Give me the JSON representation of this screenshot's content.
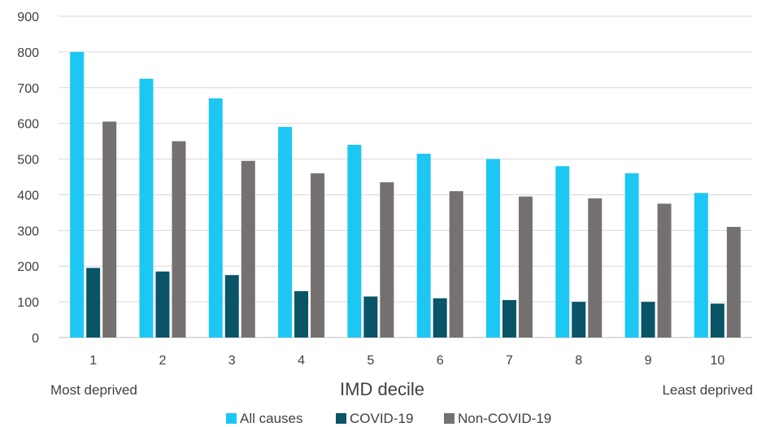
{
  "chart_data": {
    "type": "bar",
    "categories": [
      "1",
      "2",
      "3",
      "4",
      "5",
      "6",
      "7",
      "8",
      "9",
      "10"
    ],
    "series": [
      {
        "name": "All causes",
        "color": "#1cc7f4",
        "values": [
          800,
          725,
          670,
          590,
          540,
          515,
          500,
          480,
          460,
          405
        ]
      },
      {
        "name": "COVID-19",
        "color": "#0a5468",
        "values": [
          195,
          185,
          175,
          130,
          115,
          110,
          105,
          100,
          100,
          95
        ]
      },
      {
        "name": "Non-COVID-19",
        "color": "#767171",
        "values": [
          605,
          550,
          495,
          460,
          435,
          410,
          395,
          390,
          375,
          310
        ]
      }
    ],
    "xlabel": "IMD decile",
    "ylabel": "",
    "ylim": [
      0,
      900
    ],
    "yticks": [
      0,
      100,
      200,
      300,
      400,
      500,
      600,
      700,
      800,
      900
    ],
    "grid": true,
    "legend": "bottom",
    "annotations": {
      "left": "Most deprived",
      "right": "Least deprived"
    }
  }
}
